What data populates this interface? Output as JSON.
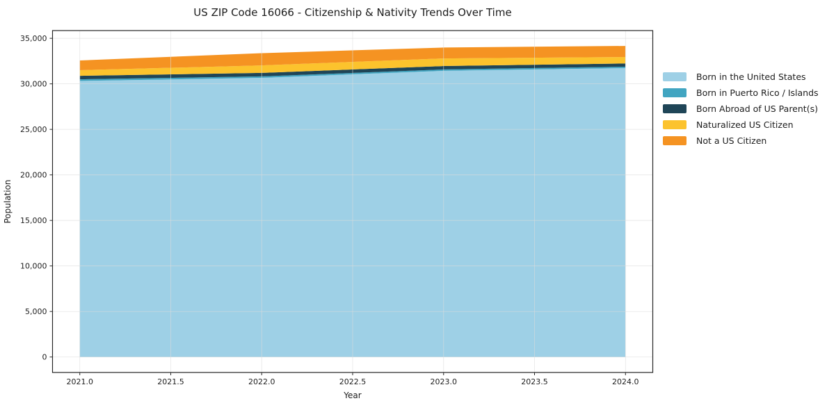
{
  "chart_data": {
    "type": "area",
    "stacked": true,
    "title": "US ZIP Code 16066 - Citizenship & Nativity Trends Over Time",
    "xlabel": "Year",
    "ylabel": "Population",
    "x": [
      2021,
      2022,
      2023,
      2024
    ],
    "series": [
      {
        "name": "Born in the United States",
        "color": "#9ed0e6",
        "values": [
          30320,
          30660,
          31430,
          31730
        ]
      },
      {
        "name": "Born in Puerto Rico / Islands",
        "color": "#41a5c1",
        "values": [
          180,
          160,
          150,
          150
        ]
      },
      {
        "name": "Born Abroad of US Parent(s)",
        "color": "#1f4557",
        "values": [
          380,
          380,
          380,
          350
        ]
      },
      {
        "name": "Naturalized US Citizen",
        "color": "#fcc32d",
        "values": [
          620,
          830,
          830,
          720
        ]
      },
      {
        "name": "Not a US Citizen",
        "color": "#f59322",
        "values": [
          1070,
          1340,
          1200,
          1210
        ]
      }
    ],
    "totals": [
      32570,
      33370,
      33990,
      34160
    ],
    "xlim": [
      2020.85,
      2024.15
    ],
    "ylim": [
      -1700,
      35850
    ],
    "x_ticks": [
      2021.0,
      2021.5,
      2022.0,
      2022.5,
      2023.0,
      2023.5,
      2024.0
    ],
    "x_tick_labels": [
      "2021.0",
      "2021.5",
      "2022.0",
      "2022.5",
      "2023.0",
      "2023.5",
      "2024.0"
    ],
    "y_ticks": [
      0,
      5000,
      10000,
      15000,
      20000,
      25000,
      30000,
      35000
    ],
    "y_tick_labels": [
      "0",
      "5,000",
      "10,000",
      "15,000",
      "20,000",
      "25,000",
      "30,000",
      "35,000"
    ],
    "grid": true,
    "grid_color": "#dcdcdc",
    "frame_color": "#262626",
    "legend_position": "outside-right",
    "legend_frame": false
  }
}
